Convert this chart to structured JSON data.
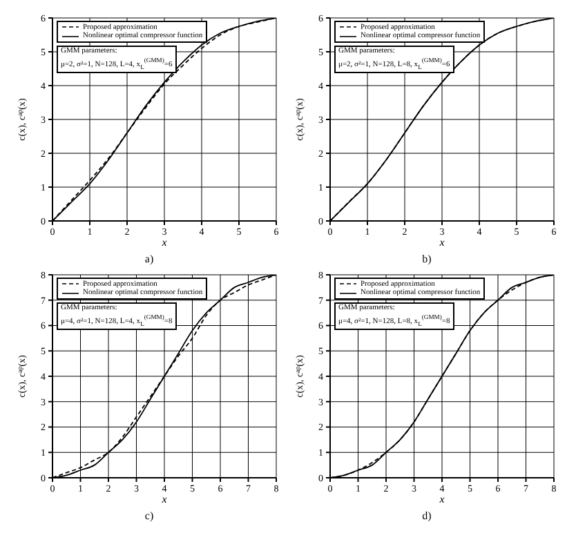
{
  "chart_data": [
    {
      "type": "line",
      "xlabel": "x",
      "ylabel": "c(x), c$^{ap}$(x)",
      "xlim": [
        0,
        6
      ],
      "ylim": [
        0,
        6
      ],
      "xticks": [
        0,
        1,
        2,
        3,
        4,
        5,
        6
      ],
      "yticks": [
        0,
        1,
        2,
        3,
        4,
        5,
        6
      ],
      "grid": true,
      "legend": "top left",
      "x": [
        0,
        0.5,
        1,
        1.5,
        2,
        2.5,
        3,
        3.5,
        4,
        4.5,
        5,
        5.5,
        6
      ],
      "annotations": [
        "GMM parameters:",
        "μ=2, σ²=1, N=128, L=4, x$_{L}$$^{(GMM)}$=6",
        "a)"
      ],
      "series": [
        {
          "name": "Proposed approximation",
          "color": "#000000",
          "line_style": "dashed",
          "values": [
            0,
            0.6,
            1.2,
            1.85,
            2.6,
            3.35,
            4.05,
            4.6,
            5.1,
            5.5,
            5.75,
            5.88,
            6
          ]
        },
        {
          "name": "Nonlinear optimal compressor function",
          "color": "#000000",
          "line_style": "solid",
          "values": [
            0,
            0.55,
            1.1,
            1.8,
            2.6,
            3.4,
            4.1,
            4.7,
            5.2,
            5.55,
            5.75,
            5.9,
            6
          ]
        }
      ]
    },
    {
      "type": "line",
      "xlabel": "x",
      "ylabel": "c(x), c$^{ap}$(x)",
      "xlim": [
        0,
        6
      ],
      "ylim": [
        0,
        6
      ],
      "xticks": [
        0,
        1,
        2,
        3,
        4,
        5,
        6
      ],
      "yticks": [
        0,
        1,
        2,
        3,
        4,
        5,
        6
      ],
      "grid": true,
      "legend": "top left",
      "x": [
        0,
        0.5,
        1,
        1.5,
        2,
        2.5,
        3,
        3.5,
        4,
        4.5,
        5,
        5.5,
        6
      ],
      "annotations": [
        "GMM parameters:",
        "μ=2, σ²=1, N=128, L=8, x$_{L}$$^{(GMM)}$=6",
        "b)"
      ],
      "series": [
        {
          "name": "Proposed approximation",
          "color": "#000000",
          "line_style": "dashed",
          "values": [
            0,
            0.56,
            1.1,
            1.8,
            2.6,
            3.4,
            4.1,
            4.7,
            5.2,
            5.55,
            5.75,
            5.9,
            6
          ]
        },
        {
          "name": "Nonlinear optimal compressor function",
          "color": "#000000",
          "line_style": "solid",
          "values": [
            0,
            0.55,
            1.1,
            1.8,
            2.6,
            3.4,
            4.1,
            4.7,
            5.2,
            5.55,
            5.75,
            5.9,
            6
          ]
        }
      ]
    },
    {
      "type": "line",
      "xlabel": "x",
      "ylabel": "c(x), c$^{ap}$(x)",
      "xlim": [
        0,
        8
      ],
      "ylim": [
        0,
        8
      ],
      "xticks": [
        0,
        1,
        2,
        3,
        4,
        5,
        6,
        7,
        8
      ],
      "yticks": [
        0,
        1,
        2,
        3,
        4,
        5,
        6,
        7,
        8
      ],
      "grid": true,
      "legend": "top left",
      "x": [
        0,
        0.5,
        1,
        1.5,
        2,
        2.5,
        3,
        3.5,
        4,
        4.5,
        5,
        5.5,
        6,
        6.5,
        7,
        7.5,
        8
      ],
      "annotations": [
        "GMM parameters:",
        "μ=4, σ²=1, N=128, L=4, x$_{L}$$^{(GMM)}$=8",
        "c)"
      ],
      "series": [
        {
          "name": "Proposed approximation",
          "color": "#000000",
          "line_style": "dashed",
          "values": [
            0,
            0.2,
            0.4,
            0.7,
            1,
            1.6,
            2.4,
            3.2,
            4,
            4.8,
            5.5,
            6.4,
            7,
            7.3,
            7.6,
            7.8,
            8
          ]
        },
        {
          "name": "Nonlinear optimal compressor function",
          "color": "#000000",
          "line_style": "solid",
          "values": [
            0,
            0.1,
            0.3,
            0.5,
            1,
            1.5,
            2.2,
            3.1,
            4,
            4.9,
            5.8,
            6.5,
            7,
            7.5,
            7.7,
            7.9,
            8
          ]
        }
      ]
    },
    {
      "type": "line",
      "xlabel": "x",
      "ylabel": "c(x), c$^{ap}$(x)",
      "xlim": [
        0,
        8
      ],
      "ylim": [
        0,
        8
      ],
      "xticks": [
        0,
        1,
        2,
        3,
        4,
        5,
        6,
        7,
        8
      ],
      "yticks": [
        0,
        1,
        2,
        3,
        4,
        5,
        6,
        7,
        8
      ],
      "grid": true,
      "legend": "top left",
      "x": [
        0,
        0.5,
        1,
        1.5,
        2,
        2.5,
        3,
        3.5,
        4,
        4.5,
        5,
        5.5,
        6,
        6.5,
        7,
        7.5,
        8
      ],
      "annotations": [
        "GMM parameters:",
        "μ=4, σ²=1, N=128, L=8, x$_{L}$$^{(GMM)}$=8",
        "d)"
      ],
      "series": [
        {
          "name": "Proposed approximation",
          "color": "#000000",
          "line_style": "dashed",
          "values": [
            0,
            0.1,
            0.3,
            0.6,
            1,
            1.5,
            2.2,
            3.1,
            4,
            4.9,
            5.8,
            6.5,
            7,
            7.4,
            7.7,
            7.9,
            8
          ]
        },
        {
          "name": "Nonlinear optimal compressor function",
          "color": "#000000",
          "line_style": "solid",
          "values": [
            0,
            0.1,
            0.3,
            0.5,
            1,
            1.5,
            2.2,
            3.1,
            4,
            4.9,
            5.8,
            6.5,
            7,
            7.5,
            7.7,
            7.9,
            8
          ]
        }
      ]
    }
  ]
}
